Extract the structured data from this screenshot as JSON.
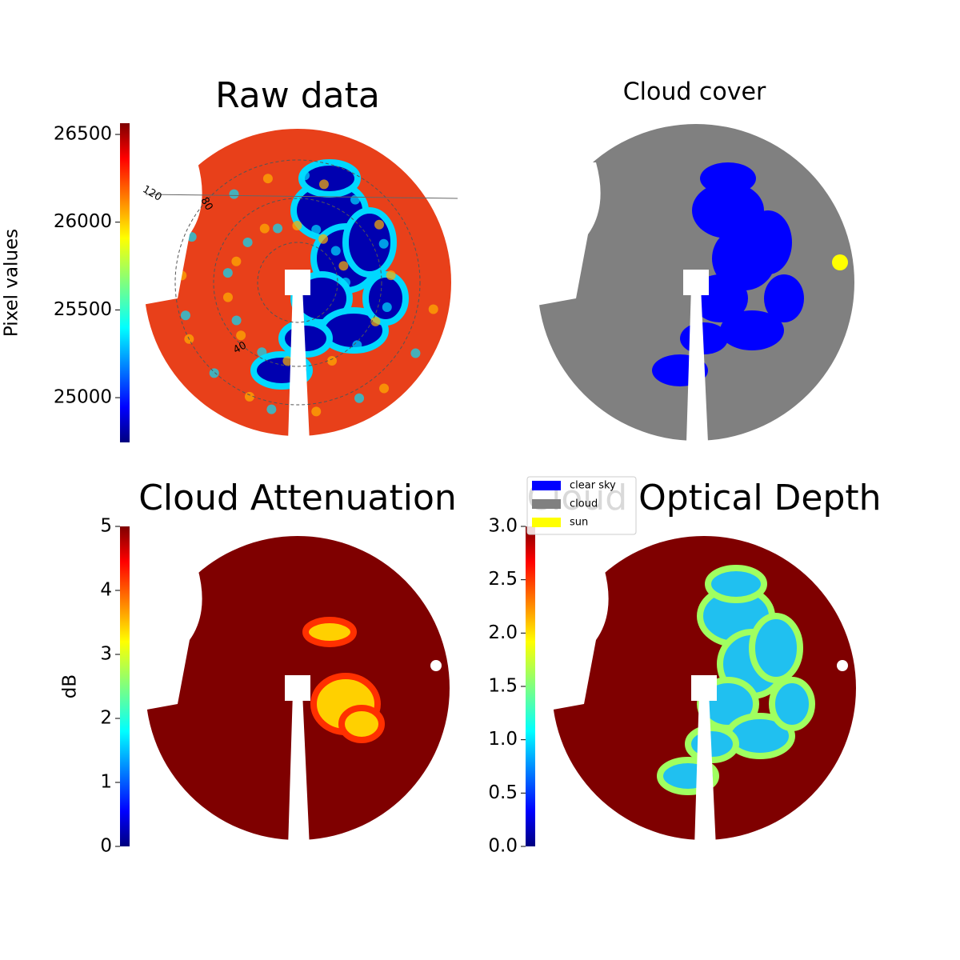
{
  "chart_data": [
    {
      "type": "image",
      "title": "Raw data",
      "colorbar_label": "Pixel values",
      "clim": [
        24745,
        26564
      ],
      "cticks": [
        25000,
        25500,
        26000,
        26500
      ],
      "polar_labels": [
        "120",
        "80",
        "40"
      ]
    },
    {
      "type": "image",
      "title": "Cloud cover",
      "legend": [
        {
          "name": "clear sky",
          "color": "#0000ff"
        },
        {
          "name": "cloud",
          "color": "#808080"
        },
        {
          "name": "sun",
          "color": "#ffff00"
        }
      ]
    },
    {
      "type": "image",
      "title": "Cloud Attenuation",
      "colorbar_label": "dB",
      "clim": [
        0,
        5
      ],
      "cticks": [
        0,
        1,
        2,
        3,
        4,
        5
      ]
    },
    {
      "type": "image",
      "title": "Cloud Optical Depth",
      "clim": [
        0,
        3
      ],
      "cticks": [
        {
          "value": 0,
          "label": "0.0"
        },
        {
          "value": 0.5,
          "label": "0.5"
        },
        {
          "value": 1,
          "label": "1.0"
        },
        {
          "value": 1.5,
          "label": "1.5"
        },
        {
          "value": 2,
          "label": "2.0"
        },
        {
          "value": 2.5,
          "label": "2.5"
        },
        {
          "value": 3,
          "label": "3.0"
        }
      ]
    }
  ]
}
